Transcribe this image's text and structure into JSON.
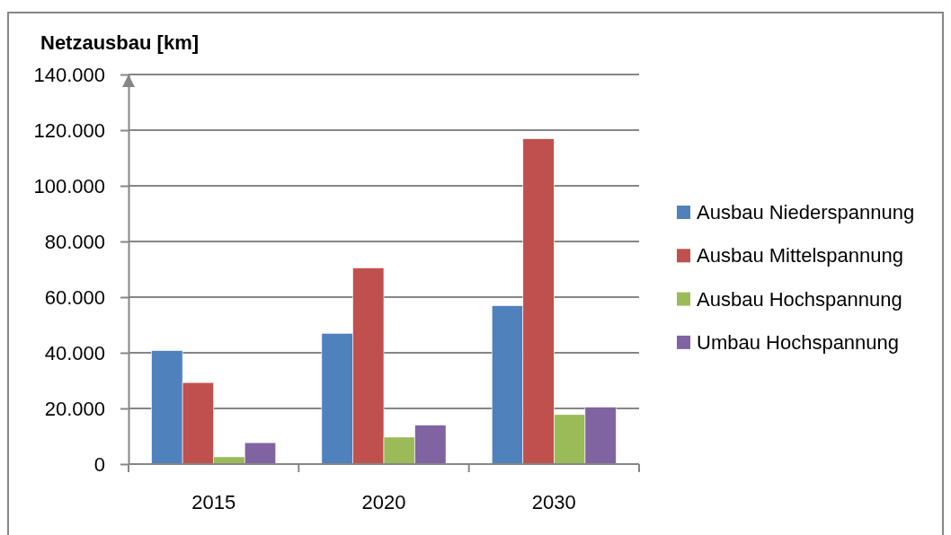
{
  "chart_data": {
    "type": "bar",
    "ylabel": "Netzausbau [km]",
    "categories": [
      "2015",
      "2020",
      "2030"
    ],
    "series": [
      {
        "name": "Ausbau Niederspannung",
        "color": "#4f81bd",
        "values": [
          40800,
          47000,
          56900
        ]
      },
      {
        "name": "Ausbau Mittelspannung",
        "color": "#c0504d",
        "values": [
          29300,
          70500,
          116900
        ]
      },
      {
        "name": "Ausbau Hochspannung",
        "color": "#9bbb59",
        "values": [
          2600,
          9700,
          17800
        ]
      },
      {
        "name": "Umbau Hochspannung",
        "color": "#8064a2",
        "values": [
          7700,
          14000,
          20500
        ]
      }
    ],
    "ylim": [
      0,
      140000
    ],
    "yticks": [
      0,
      {
        "value": 20000,
        "label": "20.000"
      },
      {
        "value": 40000,
        "label": "40.000"
      },
      {
        "value": 60000,
        "label": "60.000"
      },
      {
        "value": 80000,
        "label": "80.000"
      },
      {
        "value": 100000,
        "label": "100.000"
      },
      {
        "value": 120000,
        "label": "120.000"
      },
      {
        "value": 140000,
        "label": "140.000"
      }
    ],
    "grid": "y",
    "legend": "right"
  }
}
